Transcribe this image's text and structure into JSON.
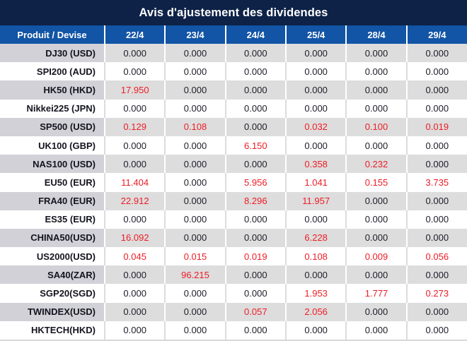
{
  "title": "Avis d'ajustement des dividendes",
  "colors": {
    "title_bg": "#0e2247",
    "header_bg": "#1254a5",
    "stripe_label_bg": "#d1d1d7",
    "stripe_cell_bg": "#dddddd",
    "highlight_red": "#ee1c25",
    "text_dark": "#1c1c28"
  },
  "table": {
    "columns": [
      "Produit / Devise",
      "22/4",
      "23/4",
      "24/4",
      "25/4",
      "28/4",
      "29/4"
    ],
    "rows": [
      {
        "product": "DJ30 (USD)",
        "values": [
          "0.000",
          "0.000",
          "0.000",
          "0.000",
          "0.000",
          "0.000"
        ],
        "red": [
          false,
          false,
          false,
          false,
          false,
          false
        ]
      },
      {
        "product": "SPI200 (AUD)",
        "values": [
          "0.000",
          "0.000",
          "0.000",
          "0.000",
          "0.000",
          "0.000"
        ],
        "red": [
          false,
          false,
          false,
          false,
          false,
          false
        ]
      },
      {
        "product": "HK50 (HKD)",
        "values": [
          "17.950",
          "0.000",
          "0.000",
          "0.000",
          "0.000",
          "0.000"
        ],
        "red": [
          true,
          false,
          false,
          false,
          false,
          false
        ]
      },
      {
        "product": "Nikkei225 (JPN)",
        "values": [
          "0.000",
          "0.000",
          "0.000",
          "0.000",
          "0.000",
          "0.000"
        ],
        "red": [
          false,
          false,
          false,
          false,
          false,
          false
        ]
      },
      {
        "product": "SP500 (USD)",
        "values": [
          "0.129",
          "0.108",
          "0.000",
          "0.032",
          "0.100",
          "0.019"
        ],
        "red": [
          true,
          true,
          false,
          true,
          true,
          true
        ]
      },
      {
        "product": "UK100 (GBP)",
        "values": [
          "0.000",
          "0.000",
          "6.150",
          "0.000",
          "0.000",
          "0.000"
        ],
        "red": [
          false,
          false,
          true,
          false,
          false,
          false
        ]
      },
      {
        "product": "NAS100 (USD)",
        "values": [
          "0.000",
          "0.000",
          "0.000",
          "0.358",
          "0.232",
          "0.000"
        ],
        "red": [
          false,
          false,
          false,
          true,
          true,
          false
        ]
      },
      {
        "product": "EU50 (EUR)",
        "values": [
          "11.404",
          "0.000",
          "5.956",
          "1.041",
          "0.155",
          "3.735"
        ],
        "red": [
          true,
          false,
          true,
          true,
          true,
          true
        ]
      },
      {
        "product": "FRA40 (EUR)",
        "values": [
          "22.912",
          "0.000",
          "8.296",
          "11.957",
          "0.000",
          "0.000"
        ],
        "red": [
          true,
          false,
          true,
          true,
          false,
          false
        ]
      },
      {
        "product": "ES35 (EUR)",
        "values": [
          "0.000",
          "0.000",
          "0.000",
          "0.000",
          "0.000",
          "0.000"
        ],
        "red": [
          false,
          false,
          false,
          false,
          false,
          false
        ]
      },
      {
        "product": "CHINA50(USD)",
        "values": [
          "16.092",
          "0.000",
          "0.000",
          "6.228",
          "0.000",
          "0.000"
        ],
        "red": [
          true,
          false,
          false,
          true,
          false,
          false
        ]
      },
      {
        "product": "US2000(USD)",
        "values": [
          "0.045",
          "0.015",
          "0.019",
          "0.108",
          "0.009",
          "0.056"
        ],
        "red": [
          true,
          true,
          true,
          true,
          true,
          true
        ]
      },
      {
        "product": "SA40(ZAR)",
        "values": [
          "0.000",
          "96.215",
          "0.000",
          "0.000",
          "0.000",
          "0.000"
        ],
        "red": [
          false,
          true,
          false,
          false,
          false,
          false
        ]
      },
      {
        "product": "SGP20(SGD)",
        "values": [
          "0.000",
          "0.000",
          "0.000",
          "1.953",
          "1.777",
          "0.273"
        ],
        "red": [
          false,
          false,
          false,
          true,
          true,
          true
        ]
      },
      {
        "product": "TWINDEX(USD)",
        "values": [
          "0.000",
          "0.000",
          "0.057",
          "2.056",
          "0.000",
          "0.000"
        ],
        "red": [
          false,
          false,
          true,
          true,
          false,
          false
        ]
      },
      {
        "product": "HKTECH(HKD)",
        "values": [
          "0.000",
          "0.000",
          "0.000",
          "0.000",
          "0.000",
          "0.000"
        ],
        "red": [
          false,
          false,
          false,
          false,
          false,
          false
        ]
      }
    ]
  }
}
